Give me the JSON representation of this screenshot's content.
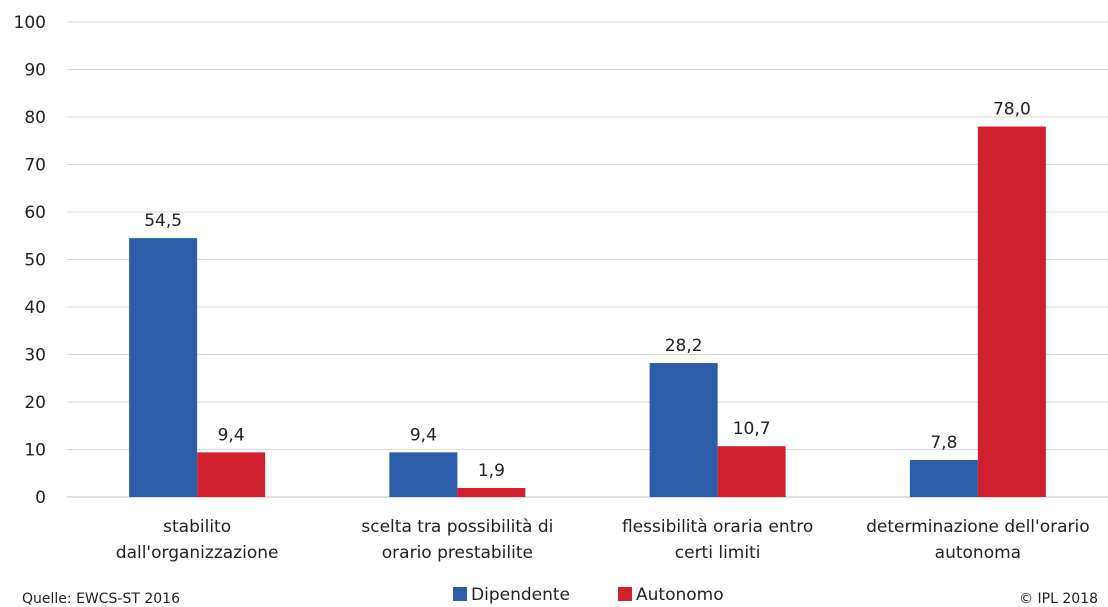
{
  "chart_data": {
    "type": "bar",
    "categories": [
      [
        "stabilito",
        "dall'organizzazione"
      ],
      [
        "scelta tra possibilità di",
        "orario prestabilite"
      ],
      [
        "flessibilità oraria entro",
        "certi limiti"
      ],
      [
        "determinazione dell'orario",
        "autonoma"
      ]
    ],
    "series": [
      {
        "name": "Dipendente",
        "color": "#2b5dab",
        "values": [
          54.5,
          9.4,
          28.2,
          7.8
        ],
        "labels": [
          "54,5",
          "9,4",
          "28,2",
          "7,8"
        ]
      },
      {
        "name": "Autonomo",
        "color": "#d0202e",
        "values": [
          9.4,
          1.9,
          10.7,
          78.0
        ],
        "labels": [
          "9,4",
          "1,9",
          "10,7",
          "78,0"
        ]
      }
    ],
    "ylim": [
      0,
      100
    ],
    "yticks": [
      0,
      10,
      20,
      30,
      40,
      50,
      60,
      70,
      80,
      90,
      100
    ],
    "grid": true,
    "legend": "bottom-center"
  },
  "footer": {
    "source": "Quelle: EWCS-ST 2016",
    "copyright": "© IPL 2018"
  }
}
